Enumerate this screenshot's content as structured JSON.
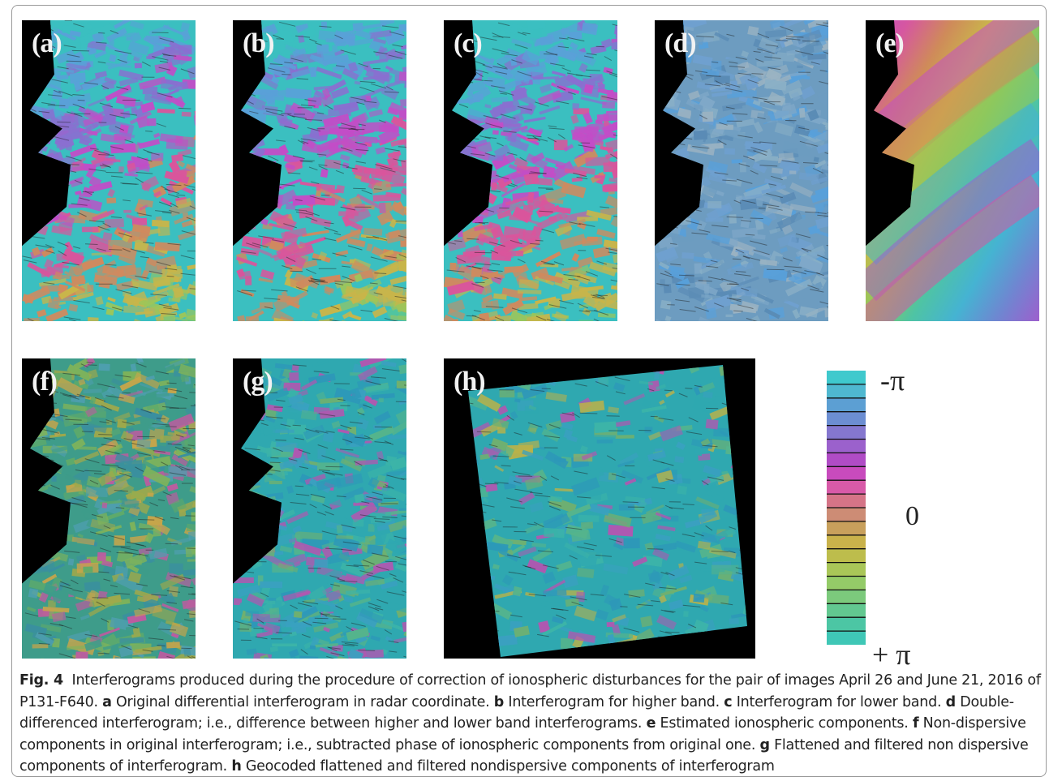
{
  "figure": {
    "panels": [
      {
        "id": "a",
        "label": "(a)",
        "style": "rainbow"
      },
      {
        "id": "b",
        "label": "(b)",
        "style": "rainbow"
      },
      {
        "id": "c",
        "label": "(c)",
        "style": "rainbow"
      },
      {
        "id": "d",
        "label": "(d)",
        "style": "blue"
      },
      {
        "id": "e",
        "label": "(e)",
        "style": "smooth"
      },
      {
        "id": "f",
        "label": "(f)",
        "style": "greenyellow"
      },
      {
        "id": "g",
        "label": "(g)",
        "style": "cyan"
      },
      {
        "id": "h",
        "label": "(h)",
        "style": "geocoded"
      }
    ],
    "colorbar": {
      "top_label": "-π",
      "mid_label": "0",
      "bottom_label": "+ π",
      "colors": [
        "#3fc9cd",
        "#4fb8d0",
        "#5c9fd3",
        "#6c8ed2",
        "#8577cf",
        "#9b61cc",
        "#b04cc6",
        "#c84bbd",
        "#d85aa8",
        "#d57487",
        "#cd8c75",
        "#c8a05c",
        "#c9b24b",
        "#bdbd4c",
        "#a9c658",
        "#94cb68",
        "#7cca7c",
        "#62c890",
        "#4cc6a4",
        "#3fc7b6"
      ]
    },
    "caption": {
      "fig_label": "Fig. 4",
      "intro": "Interferograms produced during the procedure of correction of ionospheric disturbances for the pair of images April 26 and June 21, 2016 of P131-F640.",
      "items": [
        {
          "key": "a",
          "text": "Original differential interferogram in radar coordinate."
        },
        {
          "key": "b",
          "text": "Interferogram for higher band."
        },
        {
          "key": "c",
          "text": "Interferogram for lower band."
        },
        {
          "key": "d",
          "text": "Double-differenced interferogram; i.e., difference between higher and lower band interferograms."
        },
        {
          "key": "e",
          "text": "Estimated ionospheric components."
        },
        {
          "key": "f",
          "text": "Non-dispersive components in original interferogram; i.e., subtracted phase of ionospheric components from original one."
        },
        {
          "key": "g",
          "text": "Flattened and filtered non dispersive components of interferogram."
        },
        {
          "key": "h",
          "text": "Geocoded flattened and filtered nondispersive components of interferogram"
        }
      ]
    }
  }
}
